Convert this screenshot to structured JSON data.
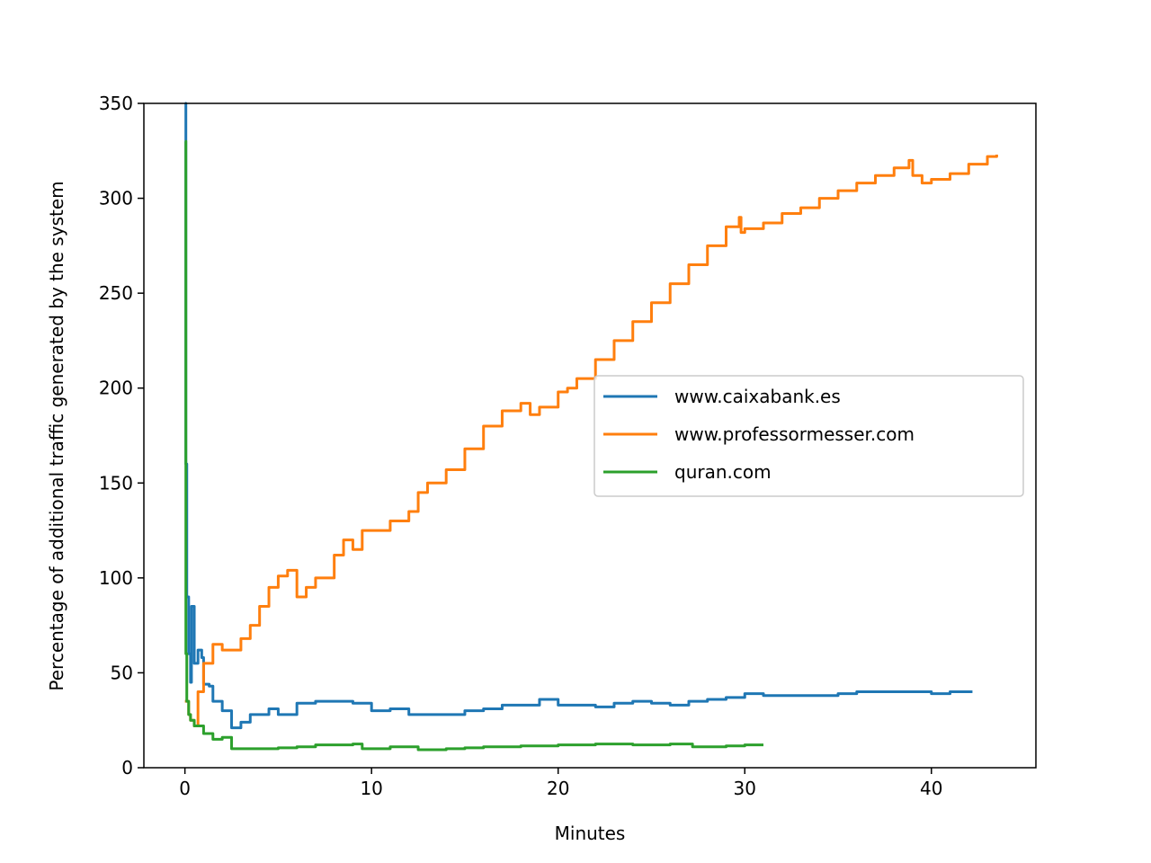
{
  "chart_data": {
    "type": "line",
    "title": "",
    "xlabel": "Minutes",
    "ylabel": "Percentage of additional traffic generated by the system",
    "xlim": [
      -2.2,
      45.6
    ],
    "ylim": [
      0,
      350
    ],
    "xticks": [
      0,
      10,
      20,
      30,
      40
    ],
    "yticks": [
      0,
      50,
      100,
      150,
      200,
      250,
      300,
      350
    ],
    "xtick_labels": [
      "0",
      "10",
      "20",
      "30",
      "40"
    ],
    "ytick_labels": [
      "0",
      "50",
      "100",
      "150",
      "200",
      "250",
      "300",
      "350"
    ],
    "grid": false,
    "legend_position": "center-right",
    "series": [
      {
        "name": "www.caixabank.es",
        "color": "#1f77b4",
        "points": [
          [
            0,
            350
          ],
          [
            0.05,
            160
          ],
          [
            0.1,
            90
          ],
          [
            0.2,
            60
          ],
          [
            0.3,
            45
          ],
          [
            0.35,
            85
          ],
          [
            0.5,
            55
          ],
          [
            0.7,
            62
          ],
          [
            0.9,
            58
          ],
          [
            1.0,
            44
          ],
          [
            1.3,
            43
          ],
          [
            1.5,
            35
          ],
          [
            2.0,
            30
          ],
          [
            2.5,
            21
          ],
          [
            3.0,
            24
          ],
          [
            3.5,
            28
          ],
          [
            4.5,
            31
          ],
          [
            5.0,
            28
          ],
          [
            6.0,
            34
          ],
          [
            7.0,
            35
          ],
          [
            8.0,
            35
          ],
          [
            9.0,
            34
          ],
          [
            10.0,
            30
          ],
          [
            11.0,
            31
          ],
          [
            12.0,
            28
          ],
          [
            14.0,
            28
          ],
          [
            15.0,
            30
          ],
          [
            16.0,
            31
          ],
          [
            17.0,
            33
          ],
          [
            19.0,
            36
          ],
          [
            20.0,
            33
          ],
          [
            21.0,
            33
          ],
          [
            22.0,
            32
          ],
          [
            23.0,
            34
          ],
          [
            24.0,
            35
          ],
          [
            25.0,
            34
          ],
          [
            26.0,
            33
          ],
          [
            27.0,
            35
          ],
          [
            28.0,
            36
          ],
          [
            29.0,
            37
          ],
          [
            30.0,
            39
          ],
          [
            31.0,
            38
          ],
          [
            33.0,
            38
          ],
          [
            35.0,
            39
          ],
          [
            36.0,
            40
          ],
          [
            39.0,
            40
          ],
          [
            40.0,
            39
          ],
          [
            41.0,
            40
          ],
          [
            42.2,
            40
          ]
        ]
      },
      {
        "name": "www.professormesser.com",
        "color": "#ff7f0e",
        "points": [
          [
            0,
            35
          ],
          [
            0.2,
            28
          ],
          [
            0.3,
            25
          ],
          [
            0.5,
            22
          ],
          [
            0.7,
            40
          ],
          [
            1.0,
            55
          ],
          [
            1.5,
            65
          ],
          [
            2.0,
            62
          ],
          [
            2.5,
            62
          ],
          [
            3.0,
            68
          ],
          [
            3.5,
            75
          ],
          [
            4.0,
            85
          ],
          [
            4.5,
            95
          ],
          [
            5.0,
            101
          ],
          [
            5.5,
            104
          ],
          [
            6.0,
            90
          ],
          [
            6.5,
            95
          ],
          [
            7.0,
            100
          ],
          [
            8.0,
            112
          ],
          [
            8.5,
            120
          ],
          [
            9.0,
            115
          ],
          [
            9.5,
            125
          ],
          [
            10.0,
            125
          ],
          [
            11.0,
            130
          ],
          [
            12.0,
            135
          ],
          [
            12.5,
            145
          ],
          [
            13.0,
            150
          ],
          [
            14.0,
            157
          ],
          [
            15.0,
            168
          ],
          [
            16.0,
            180
          ],
          [
            17.0,
            188
          ],
          [
            18.0,
            192
          ],
          [
            18.5,
            186
          ],
          [
            19.0,
            190
          ],
          [
            20.0,
            198
          ],
          [
            20.5,
            200
          ],
          [
            21.0,
            205
          ],
          [
            22.0,
            215
          ],
          [
            23.0,
            225
          ],
          [
            24.0,
            235
          ],
          [
            25.0,
            245
          ],
          [
            26.0,
            255
          ],
          [
            27.0,
            265
          ],
          [
            28.0,
            275
          ],
          [
            29.0,
            285
          ],
          [
            29.7,
            290
          ],
          [
            29.8,
            282
          ],
          [
            30.0,
            284
          ],
          [
            31.0,
            287
          ],
          [
            32.0,
            292
          ],
          [
            33.0,
            295
          ],
          [
            34.0,
            300
          ],
          [
            35.0,
            304
          ],
          [
            36.0,
            308
          ],
          [
            37.0,
            312
          ],
          [
            38.0,
            316
          ],
          [
            38.8,
            320
          ],
          [
            39.0,
            312
          ],
          [
            39.5,
            308
          ],
          [
            40.0,
            310
          ],
          [
            41.0,
            313
          ],
          [
            42.0,
            318
          ],
          [
            43.0,
            322
          ],
          [
            43.5,
            323
          ]
        ]
      },
      {
        "name": "quran.com",
        "color": "#2ca02c",
        "points": [
          [
            0,
            330
          ],
          [
            0.05,
            60
          ],
          [
            0.1,
            35
          ],
          [
            0.2,
            28
          ],
          [
            0.3,
            25
          ],
          [
            0.5,
            22
          ],
          [
            1.0,
            18
          ],
          [
            1.5,
            15
          ],
          [
            2.0,
            16
          ],
          [
            2.5,
            10
          ],
          [
            3.0,
            10
          ],
          [
            4.0,
            10
          ],
          [
            5.0,
            10.5
          ],
          [
            6.0,
            11
          ],
          [
            7.0,
            12
          ],
          [
            8.0,
            12
          ],
          [
            9.0,
            12.5
          ],
          [
            9.5,
            10
          ],
          [
            10.0,
            10
          ],
          [
            11.0,
            11
          ],
          [
            12.0,
            11
          ],
          [
            12.5,
            9.5
          ],
          [
            14.0,
            10
          ],
          [
            15.0,
            10.5
          ],
          [
            16.0,
            11
          ],
          [
            18.0,
            11.5
          ],
          [
            20.0,
            12
          ],
          [
            22.0,
            12.5
          ],
          [
            24.0,
            12
          ],
          [
            26.0,
            12.5
          ],
          [
            27.0,
            12.5
          ],
          [
            27.2,
            11
          ],
          [
            29.0,
            11.5
          ],
          [
            30.0,
            12
          ],
          [
            31.0,
            12
          ]
        ]
      }
    ]
  }
}
